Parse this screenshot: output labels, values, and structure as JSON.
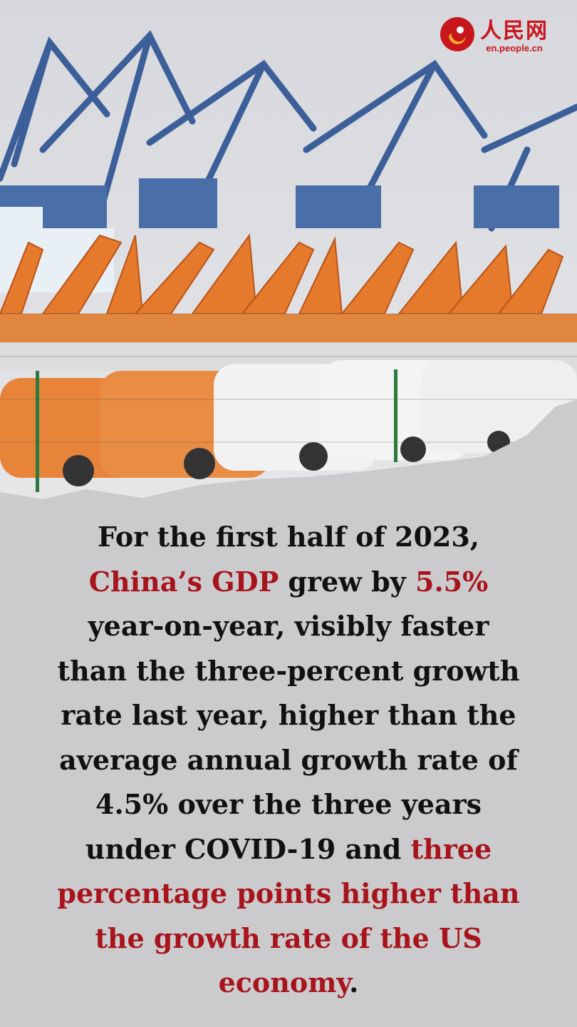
{
  "logo": {
    "name": "人民网",
    "url": "en.people.cn"
  },
  "text": {
    "highlight_color": "#a8141b",
    "color": "#111111",
    "lines": [
      {
        "runs": [
          {
            "text": "For the first half of 2023,",
            "highlight": false
          }
        ]
      },
      {
        "runs": [
          {
            "text": "China’s GDP",
            "highlight": true
          },
          {
            "text": " grew by ",
            "highlight": false
          },
          {
            "text": "5.5%",
            "highlight": true
          }
        ]
      },
      {
        "runs": [
          {
            "text": "year-on-year, visibly faster",
            "highlight": false
          }
        ]
      },
      {
        "runs": [
          {
            "text": "than the three-percent growth",
            "highlight": false
          }
        ]
      },
      {
        "runs": [
          {
            "text": "rate last year, higher than the",
            "highlight": false
          }
        ]
      },
      {
        "runs": [
          {
            "text": "average annual growth rate of",
            "highlight": false
          }
        ]
      },
      {
        "runs": [
          {
            "text": "4.5% over the three years",
            "highlight": false
          }
        ]
      },
      {
        "runs": [
          {
            "text": "under COVID-19 and ",
            "highlight": false
          },
          {
            "text": "three",
            "highlight": true
          }
        ]
      },
      {
        "runs": [
          {
            "text": "percentage points higher than",
            "highlight": true
          }
        ]
      },
      {
        "runs": [
          {
            "text": "the growth rate of the US",
            "highlight": true
          }
        ]
      },
      {
        "runs": [
          {
            "text": "economy",
            "highlight": true
          },
          {
            "text": ".",
            "highlight": false
          }
        ]
      }
    ]
  }
}
